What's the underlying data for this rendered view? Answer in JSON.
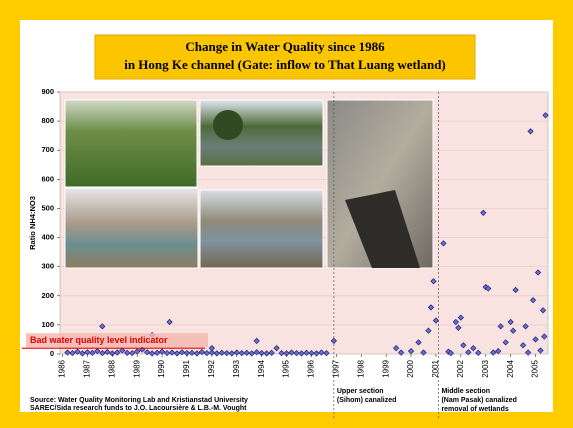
{
  "chart_data": {
    "type": "scatter",
    "title": [
      "Change in Water Quality since 1986",
      "in Hong Ke channel (Gate: inflow to That Luang wetland)"
    ],
    "y_label": "Ratio NH4:NO3",
    "color": "#2e2e8c",
    "ylim": [
      0,
      900
    ],
    "yticks": [
      0,
      100,
      200,
      300,
      400,
      500,
      600,
      700,
      800,
      900
    ],
    "xlim": [
      1985.9,
      2005.5
    ],
    "xticks": [
      1986,
      1987,
      1988,
      1989,
      1990,
      1991,
      1992,
      1993,
      1994,
      1995,
      1996,
      1997,
      1998,
      1999,
      2000,
      2001,
      2002,
      2003,
      2004,
      2005
    ],
    "grid": true,
    "x": [
      1986.2,
      1986.4,
      1986.6,
      1986.8,
      1987.0,
      1987.2,
      1987.4,
      1987.6,
      1987.8,
      1988.0,
      1988.2,
      1988.4,
      1988.6,
      1988.8,
      1989.0,
      1989.2,
      1989.4,
      1989.6,
      1989.8,
      1990.0,
      1990.2,
      1990.4,
      1990.6,
      1990.8,
      1991.0,
      1991.2,
      1991.4,
      1991.6,
      1991.8,
      1992.0,
      1992.2,
      1992.4,
      1992.6,
      1992.8,
      1993.0,
      1993.2,
      1993.4,
      1993.6,
      1993.8,
      1994.0,
      1994.2,
      1994.4,
      1994.8,
      1995.0,
      1995.2,
      1995.4,
      1995.6,
      1995.8,
      1996.0,
      1996.2,
      1996.4,
      1996.6,
      1987.6,
      1989.6,
      1990.3,
      1992.0,
      1993.8,
      1994.6,
      1996.9,
      1999.4,
      1999.6,
      2000.0,
      2000.3,
      2000.5,
      2000.7,
      2000.8,
      2000.9,
      2001.0,
      2001.3,
      2001.5,
      2001.6,
      2001.8,
      2001.9,
      2002.0,
      2002.1,
      2002.3,
      2002.5,
      2002.7,
      2002.9,
      2003.0,
      2003.1,
      2003.3,
      2003.5,
      2003.6,
      2003.8,
      2004.0,
      2004.1,
      2004.2,
      2004.5,
      2004.6,
      2004.7,
      2004.8,
      2004.9,
      2005.0,
      2005.1,
      2005.2,
      2005.3,
      2005.35,
      2005.4
    ],
    "values": [
      5,
      3,
      8,
      2,
      6,
      4,
      10,
      3,
      7,
      2,
      5,
      12,
      4,
      3,
      9,
      15,
      6,
      2,
      4,
      8,
      3,
      5,
      2,
      6,
      3,
      4,
      2,
      7,
      3,
      5,
      2,
      4,
      3,
      2,
      5,
      3,
      4,
      2,
      6,
      3,
      2,
      4,
      3,
      2,
      5,
      3,
      2,
      4,
      3,
      2,
      5,
      3,
      95,
      65,
      110,
      20,
      45,
      20,
      45,
      20,
      5,
      10,
      40,
      5,
      80,
      160,
      250,
      115,
      380,
      8,
      3,
      110,
      90,
      125,
      30,
      6,
      20,
      4,
      485,
      230,
      225,
      5,
      10,
      95,
      40,
      110,
      80,
      220,
      30,
      95,
      5,
      765,
      185,
      50,
      280,
      12,
      150,
      60,
      820
    ],
    "indicator": {
      "label": "Bad water quality level indicator",
      "value": 20
    },
    "dividers": [
      {
        "x": 1996.9,
        "text": [
          "Upper section",
          "(Sihom) canalized"
        ]
      },
      {
        "x": 2001.1,
        "text": [
          "Middle section",
          "(Nam Pasak) canalized",
          "removal of wetlands"
        ]
      }
    ],
    "source": [
      "Source: Water Quality Monitoring Lab and Kristianstad University",
      "SAREC/Sida research funds to J.O. Lacoursière & L.B.-M. Vought"
    ]
  }
}
